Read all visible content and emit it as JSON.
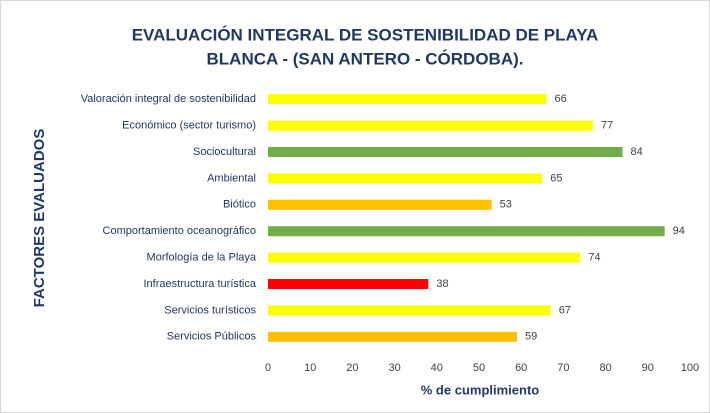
{
  "chart_data": {
    "type": "barh",
    "title": [
      "EVALUACIÓN INTEGRAL DE SOSTENIBILIDAD DE PLAYA",
      "BLANCA - (SAN ANTERO - CÓRDOBA)."
    ],
    "xlabel": "% de cumplimiento",
    "ylabel": "FACTORES EVALUADOS",
    "categories": [
      "Valoración integral de sostenibilidad",
      "Económico (sector turismo)",
      "Sociocultural",
      "Ambiental",
      "Biótico",
      "Comportamiento oceanográfico",
      "Morfología de la Playa",
      "Infraestructura turística",
      "Servicios turísticos",
      "Servicios Públicos"
    ],
    "values": [
      66,
      77,
      84,
      65,
      53,
      94,
      74,
      38,
      67,
      59
    ],
    "colors": [
      "#ffff00",
      "#ffff00",
      "#70ad47",
      "#ffff00",
      "#ffc000",
      "#70ad47",
      "#ffff00",
      "#ff0000",
      "#ffff00",
      "#ffc000"
    ],
    "xlim": [
      0,
      100
    ],
    "xticks": [
      0,
      10,
      20,
      30,
      40,
      50,
      60,
      70,
      80,
      90,
      100
    ],
    "grid": false
  }
}
